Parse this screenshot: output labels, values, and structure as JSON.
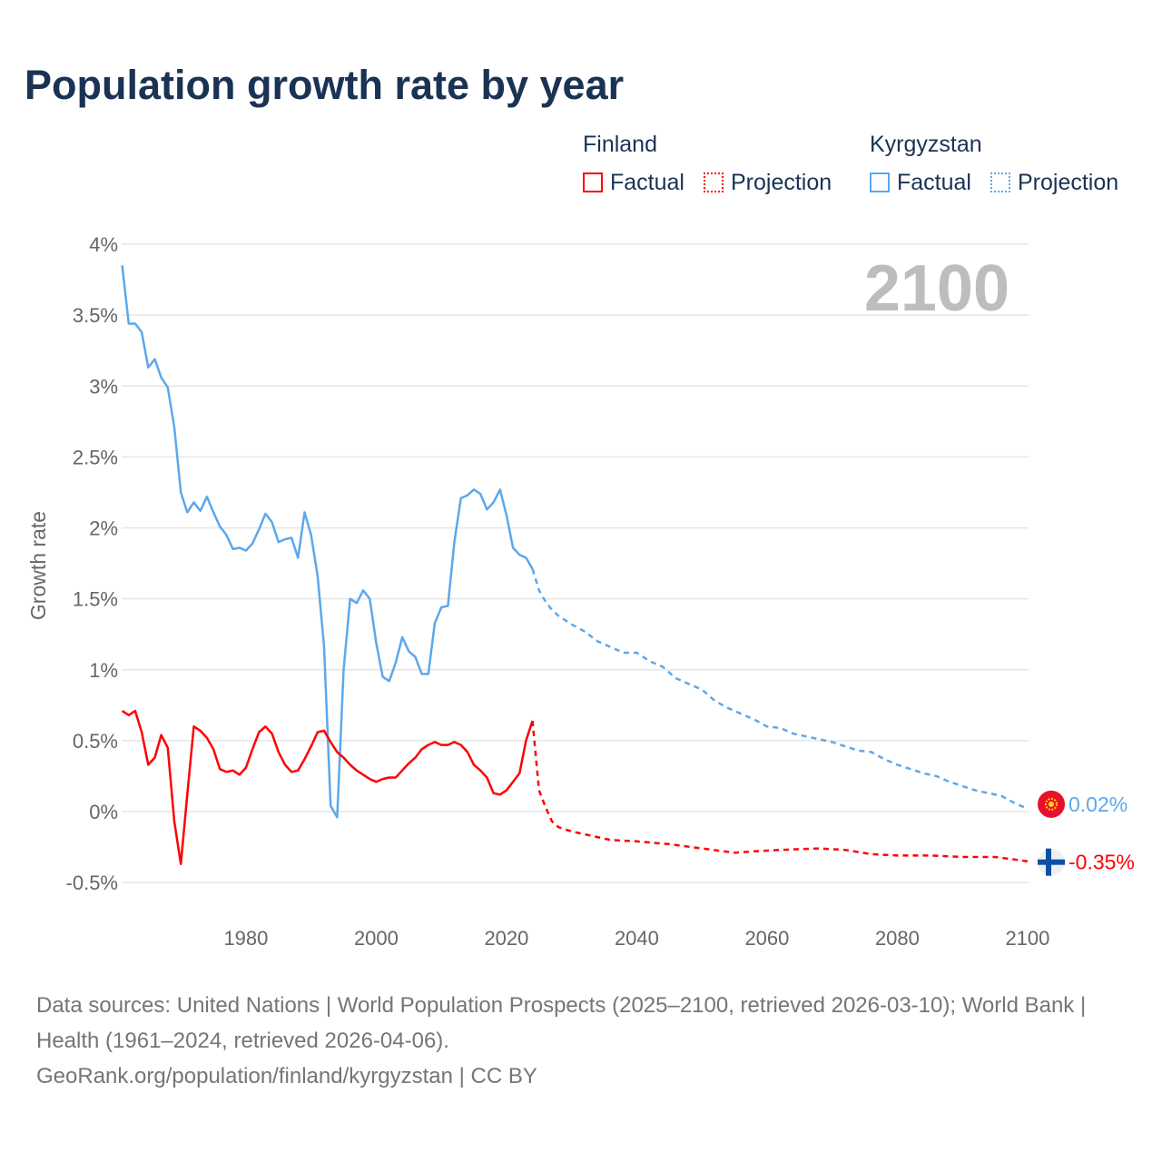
{
  "title": "Population growth rate by year",
  "legend": {
    "groups": [
      {
        "name": "Finland",
        "color": "#ff0000",
        "factual": "Factual",
        "projection": "Projection"
      },
      {
        "name": "Kyrgyzstan",
        "color": "#5ca8ec",
        "factual": "Factual",
        "projection": "Projection"
      }
    ]
  },
  "footer": {
    "sources": "Data sources: United Nations | World Population Prospects (2025–2100, retrieved 2026-03-10); World Bank | Health (1961–2024, retrieved 2026-04-06).",
    "credit": "GeoRank.org/population/finland/kyrgyzstan | CC BY"
  },
  "chart_data": {
    "type": "line",
    "title": "Population growth rate by year",
    "ylabel": "Growth rate",
    "xlabel": "",
    "year_label": "2100",
    "xlim": [
      1961,
      2100
    ],
    "ylim": [
      -0.6,
      4.0
    ],
    "x_ticks": [
      "1980",
      "2000",
      "2020",
      "2040",
      "2060",
      "2080",
      "2100"
    ],
    "y_ticks": [
      {
        "v": 4,
        "label": "4%"
      },
      {
        "v": 3.5,
        "label": "3.5%"
      },
      {
        "v": 3,
        "label": "3%"
      },
      {
        "v": 2.5,
        "label": "2.5%"
      },
      {
        "v": 2,
        "label": "2%"
      },
      {
        "v": 1.5,
        "label": "1.5%"
      },
      {
        "v": 1,
        "label": "1%"
      },
      {
        "v": 0.5,
        "label": "0.5%"
      },
      {
        "v": 0,
        "label": "0%"
      },
      {
        "v": -0.5,
        "label": "-0.5%"
      }
    ],
    "grid": true,
    "series": [
      {
        "name": "Kyrgyzstan",
        "color": "#5ca8ec",
        "end_label": "0.02%",
        "flag": "kyrgyzstan-flag",
        "factual_start": 1961,
        "factual": [
          3.85,
          3.44,
          3.44,
          3.38,
          3.13,
          3.19,
          3.06,
          2.99,
          2.71,
          2.25,
          2.11,
          2.18,
          2.12,
          2.22,
          2.11,
          2.01,
          1.95,
          1.85,
          1.86,
          1.84,
          1.89,
          1.99,
          2.1,
          2.04,
          1.9,
          1.92,
          1.93,
          1.79,
          2.11,
          1.95,
          1.66,
          1.16,
          0.04,
          -0.04,
          1.0,
          1.5,
          1.47,
          1.56,
          1.5,
          1.19,
          0.95,
          0.92,
          1.05,
          1.23,
          1.13,
          1.09,
          0.97,
          0.97,
          1.33,
          1.44,
          1.45,
          1.9,
          2.21,
          2.23,
          2.27,
          2.24,
          2.13,
          2.18,
          2.27,
          2.09,
          1.86,
          1.81,
          1.79,
          1.71
        ],
        "projection": [
          [
            2024,
            1.71
          ],
          [
            2025,
            1.56
          ],
          [
            2026,
            1.48
          ],
          [
            2027,
            1.42
          ],
          [
            2028,
            1.38
          ],
          [
            2030,
            1.32
          ],
          [
            2032,
            1.27
          ],
          [
            2034,
            1.2
          ],
          [
            2036,
            1.16
          ],
          [
            2038,
            1.12
          ],
          [
            2040,
            1.12
          ],
          [
            2042,
            1.06
          ],
          [
            2044,
            1.02
          ],
          [
            2046,
            0.94
          ],
          [
            2048,
            0.9
          ],
          [
            2050,
            0.86
          ],
          [
            2052,
            0.78
          ],
          [
            2054,
            0.73
          ],
          [
            2056,
            0.69
          ],
          [
            2058,
            0.65
          ],
          [
            2060,
            0.6
          ],
          [
            2062,
            0.59
          ],
          [
            2064,
            0.55
          ],
          [
            2066,
            0.53
          ],
          [
            2068,
            0.51
          ],
          [
            2070,
            0.49
          ],
          [
            2072,
            0.46
          ],
          [
            2074,
            0.43
          ],
          [
            2076,
            0.42
          ],
          [
            2078,
            0.37
          ],
          [
            2080,
            0.33
          ],
          [
            2082,
            0.3
          ],
          [
            2084,
            0.27
          ],
          [
            2086,
            0.25
          ],
          [
            2088,
            0.21
          ],
          [
            2090,
            0.18
          ],
          [
            2092,
            0.15
          ],
          [
            2094,
            0.13
          ],
          [
            2096,
            0.11
          ],
          [
            2098,
            0.06
          ],
          [
            2100,
            0.02
          ]
        ]
      },
      {
        "name": "Finland",
        "color": "#ff0000",
        "end_label": "-0.35%",
        "flag": "finland-flag",
        "factual_start": 1961,
        "factual": [
          0.71,
          0.68,
          0.71,
          0.56,
          0.33,
          0.38,
          0.54,
          0.45,
          -0.07,
          -0.37,
          0.12,
          0.6,
          0.57,
          0.52,
          0.44,
          0.3,
          0.28,
          0.29,
          0.26,
          0.31,
          0.44,
          0.56,
          0.6,
          0.55,
          0.42,
          0.33,
          0.28,
          0.29,
          0.37,
          0.46,
          0.56,
          0.57,
          0.49,
          0.42,
          0.38,
          0.33,
          0.29,
          0.26,
          0.23,
          0.21,
          0.23,
          0.24,
          0.24,
          0.29,
          0.34,
          0.38,
          0.44,
          0.47,
          0.49,
          0.47,
          0.47,
          0.49,
          0.47,
          0.42,
          0.33,
          0.29,
          0.24,
          0.13,
          0.12,
          0.15,
          0.21,
          0.27,
          0.5,
          0.64
        ],
        "projection": [
          [
            2024,
            0.64
          ],
          [
            2025,
            0.15
          ],
          [
            2026,
            0.03
          ],
          [
            2027,
            -0.07
          ],
          [
            2028,
            -0.11
          ],
          [
            2030,
            -0.14
          ],
          [
            2033,
            -0.17
          ],
          [
            2036,
            -0.2
          ],
          [
            2040,
            -0.21
          ],
          [
            2045,
            -0.23
          ],
          [
            2050,
            -0.26
          ],
          [
            2055,
            -0.29
          ],
          [
            2058,
            -0.28
          ],
          [
            2062,
            -0.27
          ],
          [
            2068,
            -0.26
          ],
          [
            2072,
            -0.27
          ],
          [
            2076,
            -0.3
          ],
          [
            2080,
            -0.31
          ],
          [
            2085,
            -0.31
          ],
          [
            2090,
            -0.32
          ],
          [
            2095,
            -0.32
          ],
          [
            2100,
            -0.35
          ]
        ]
      }
    ]
  }
}
